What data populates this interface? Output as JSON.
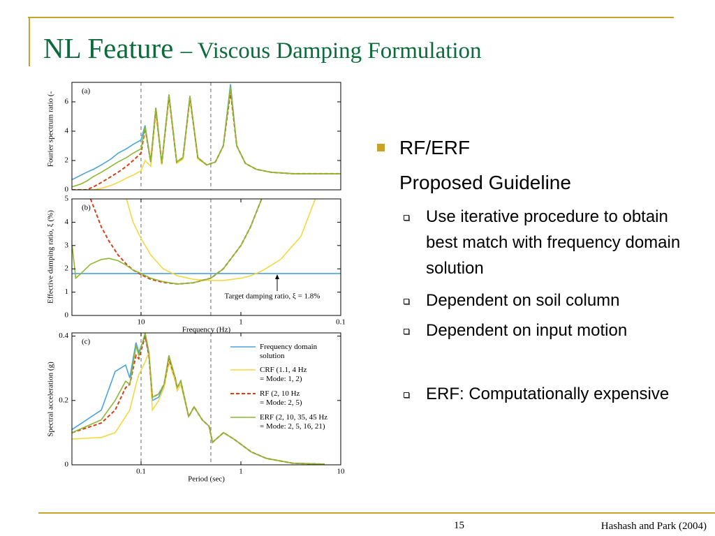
{
  "slide": {
    "title_main": "NL Feature",
    "title_rest": "– Viscous Damping Formulation",
    "heading": "RF/ERF",
    "subheading": "Proposed Guideline",
    "items": [
      "Use iterative procedure to obtain best match with frequency domain solution",
      "Dependent on soil column",
      "Dependent on input motion",
      "ERF: Computationally expensive"
    ],
    "page": "15",
    "citation": "Hashash and Park (2004)"
  },
  "chart_data": [
    {
      "type": "line",
      "tag": "(a)",
      "ylabel": "Fourier spectrum ratio (-",
      "xscale": "log",
      "xlim": [
        49.2,
        0.1
      ],
      "ylim": [
        0,
        7.33
      ],
      "yticks": [
        0,
        2,
        4,
        6
      ],
      "vlines": [
        10,
        2
      ],
      "x": [
        49,
        40,
        35,
        30,
        25,
        20,
        17,
        14,
        12,
        10,
        9.1,
        8,
        7.1,
        6.2,
        5.25,
        4.4,
        3.8,
        3.24,
        2.7,
        2.2,
        1.8,
        1.5,
        1.27,
        1.1,
        0.9,
        0.7,
        0.5,
        0.3,
        0.2,
        0.1
      ],
      "series": [
        {
          "color": "#4aa3df",
          "style": "solid",
          "values": [
            0.7,
            1.0,
            1.2,
            1.4,
            1.7,
            2.1,
            2.5,
            2.8,
            3.1,
            3.4,
            4.4,
            1.9,
            5.6,
            1.8,
            6.5,
            1.9,
            2.2,
            6.4,
            2.2,
            1.7,
            1.9,
            3.0,
            7.2,
            3.0,
            1.8,
            1.4,
            1.2,
            1.1,
            1.1,
            1.1
          ]
        },
        {
          "color": "#f5d742",
          "style": "solid",
          "values": [
            0,
            0,
            0,
            0,
            0.1,
            0.3,
            0.5,
            0.8,
            1.0,
            1.3,
            2.0,
            1.6,
            5.3,
            1.7,
            6.3,
            1.8,
            2.1,
            6.2,
            2.1,
            1.7,
            1.9,
            3.0,
            6.7,
            3.0,
            1.8,
            1.4,
            1.2,
            1.1,
            1.1,
            1.1
          ]
        },
        {
          "color": "#d4401a",
          "style": "dashed",
          "values": [
            0,
            0,
            0,
            0.2,
            0.5,
            0.9,
            1.2,
            1.6,
            2.0,
            2.5,
            4.2,
            1.9,
            5.5,
            1.8,
            6.4,
            1.9,
            2.2,
            6.3,
            2.2,
            1.7,
            1.9,
            3.0,
            6.7,
            3.0,
            1.8,
            1.4,
            1.2,
            1.1,
            1.1,
            1.1
          ]
        },
        {
          "color": "#8cb832",
          "style": "solid",
          "values": [
            0.2,
            0.4,
            0.6,
            0.9,
            1.2,
            1.6,
            1.9,
            2.2,
            2.5,
            2.8,
            4.3,
            1.9,
            5.6,
            1.8,
            6.5,
            1.9,
            2.2,
            6.4,
            2.2,
            1.7,
            1.9,
            3.0,
            7.0,
            3.0,
            1.8,
            1.4,
            1.2,
            1.1,
            1.1,
            1.1
          ]
        }
      ]
    },
    {
      "type": "line",
      "tag": "(b)",
      "ylabel": "Effective damping ratio, ξ (%)",
      "xlabel": "Frequency (Hz)",
      "annotation": "Target damping ratio, ξ = 1.8%",
      "xscale": "log",
      "xlim": [
        49.2,
        0.1
      ],
      "ylim": [
        0,
        5
      ],
      "yticks": [
        0,
        1,
        2,
        3,
        4,
        5
      ],
      "xticks": [
        10,
        1,
        0.1
      ],
      "vlines": [
        10,
        2
      ],
      "x": [
        49,
        45,
        40,
        32,
        25,
        21,
        17,
        14,
        12,
        10,
        8,
        6,
        4.3,
        3,
        2,
        1.5,
        1,
        0.8,
        0.62,
        0.4,
        0.25,
        0.18,
        0.1
      ],
      "series": [
        {
          "color": "#4aa3df",
          "style": "solid",
          "values": [
            1.8,
            1.8,
            1.8,
            1.8,
            1.8,
            1.8,
            1.8,
            1.8,
            1.8,
            1.8,
            1.8,
            1.8,
            1.8,
            1.8,
            1.8,
            1.8,
            1.8,
            1.8,
            1.8,
            1.8,
            1.8,
            1.8,
            1.8
          ]
        },
        {
          "color": "#f5d742",
          "style": "solid",
          "values": [
            null,
            null,
            null,
            null,
            null,
            null,
            null,
            5.0,
            4.0,
            3.3,
            2.6,
            2.0,
            1.7,
            1.55,
            1.5,
            1.5,
            1.6,
            1.7,
            1.9,
            2.4,
            3.4,
            5.0,
            null
          ]
        },
        {
          "color": "#d4401a",
          "style": "dashed",
          "values": [
            null,
            null,
            null,
            5.0,
            3.8,
            3.2,
            2.6,
            2.2,
            1.95,
            1.75,
            1.55,
            1.42,
            1.35,
            1.4,
            1.6,
            2.0,
            3.0,
            3.8,
            5.0,
            null,
            null,
            null,
            null
          ]
        },
        {
          "color": "#8cb832",
          "style": "solid",
          "values": [
            3.0,
            1.6,
            1.8,
            2.2,
            2.4,
            2.45,
            2.35,
            2.15,
            1.95,
            1.8,
            1.6,
            1.45,
            1.35,
            1.4,
            1.6,
            2.0,
            3.0,
            3.8,
            5.0,
            null,
            null,
            null,
            null
          ]
        }
      ]
    },
    {
      "type": "line",
      "tag": "(c)",
      "ylabel": "Spectral acceleration (g)",
      "xlabel": "Period (sec)",
      "xscale": "log",
      "xlim": [
        0.0203,
        10
      ],
      "ylim": [
        0,
        0.41
      ],
      "yticks": [
        0,
        0.2,
        0.4
      ],
      "xticks": [
        0.1,
        1,
        10
      ],
      "vlines": [
        0.1,
        0.5
      ],
      "x": [
        0.0204,
        0.04,
        0.055,
        0.07,
        0.077,
        0.089,
        0.095,
        0.11,
        0.12,
        0.13,
        0.15,
        0.17,
        0.19,
        0.22,
        0.23,
        0.25,
        0.3,
        0.34,
        0.41,
        0.48,
        0.52,
        0.67,
        0.85,
        1.27,
        1.8,
        3.3,
        6.9
      ],
      "series": [
        {
          "name": "Frequency domain\nsolution",
          "color": "#4aa3df",
          "style": "solid",
          "values": [
            0.11,
            0.17,
            0.29,
            0.31,
            0.27,
            0.38,
            0.35,
            0.4,
            0.34,
            0.2,
            0.21,
            0.25,
            0.34,
            0.27,
            0.24,
            0.26,
            0.15,
            0.18,
            0.14,
            0.12,
            0.07,
            0.1,
            0.08,
            0.04,
            0.02,
            0.005,
            0.002
          ]
        },
        {
          "name": "CRF (1.1, 4 Hz\n= Mode: 1, 2)",
          "color": "#f5d742",
          "style": "solid",
          "values": [
            0.08,
            0.085,
            0.1,
            0.15,
            0.17,
            0.25,
            0.28,
            0.32,
            0.35,
            0.17,
            0.2,
            0.24,
            0.32,
            0.26,
            0.23,
            0.25,
            0.15,
            0.18,
            0.14,
            0.12,
            0.07,
            0.1,
            0.08,
            0.04,
            0.02,
            0.005,
            0.002
          ]
        },
        {
          "name": "RF (2, 10 Hz\n= Mode: 2, 5)",
          "color": "#d4401a",
          "style": "dashed",
          "values": [
            0.1,
            0.13,
            0.17,
            0.24,
            0.25,
            0.34,
            0.33,
            0.4,
            0.34,
            0.21,
            0.22,
            0.25,
            0.33,
            0.27,
            0.24,
            0.26,
            0.15,
            0.18,
            0.14,
            0.12,
            0.07,
            0.1,
            0.08,
            0.04,
            0.02,
            0.005,
            0.002
          ]
        },
        {
          "name": "ERF (2, 10, 35, 45 Hz\n= Mode: 2, 5, 16, 21)",
          "color": "#8cb832",
          "style": "solid",
          "values": [
            0.1,
            0.14,
            0.2,
            0.26,
            0.25,
            0.37,
            0.34,
            0.41,
            0.35,
            0.21,
            0.22,
            0.25,
            0.34,
            0.27,
            0.24,
            0.26,
            0.15,
            0.18,
            0.14,
            0.12,
            0.07,
            0.1,
            0.08,
            0.04,
            0.02,
            0.005,
            0.002
          ]
        }
      ]
    }
  ]
}
